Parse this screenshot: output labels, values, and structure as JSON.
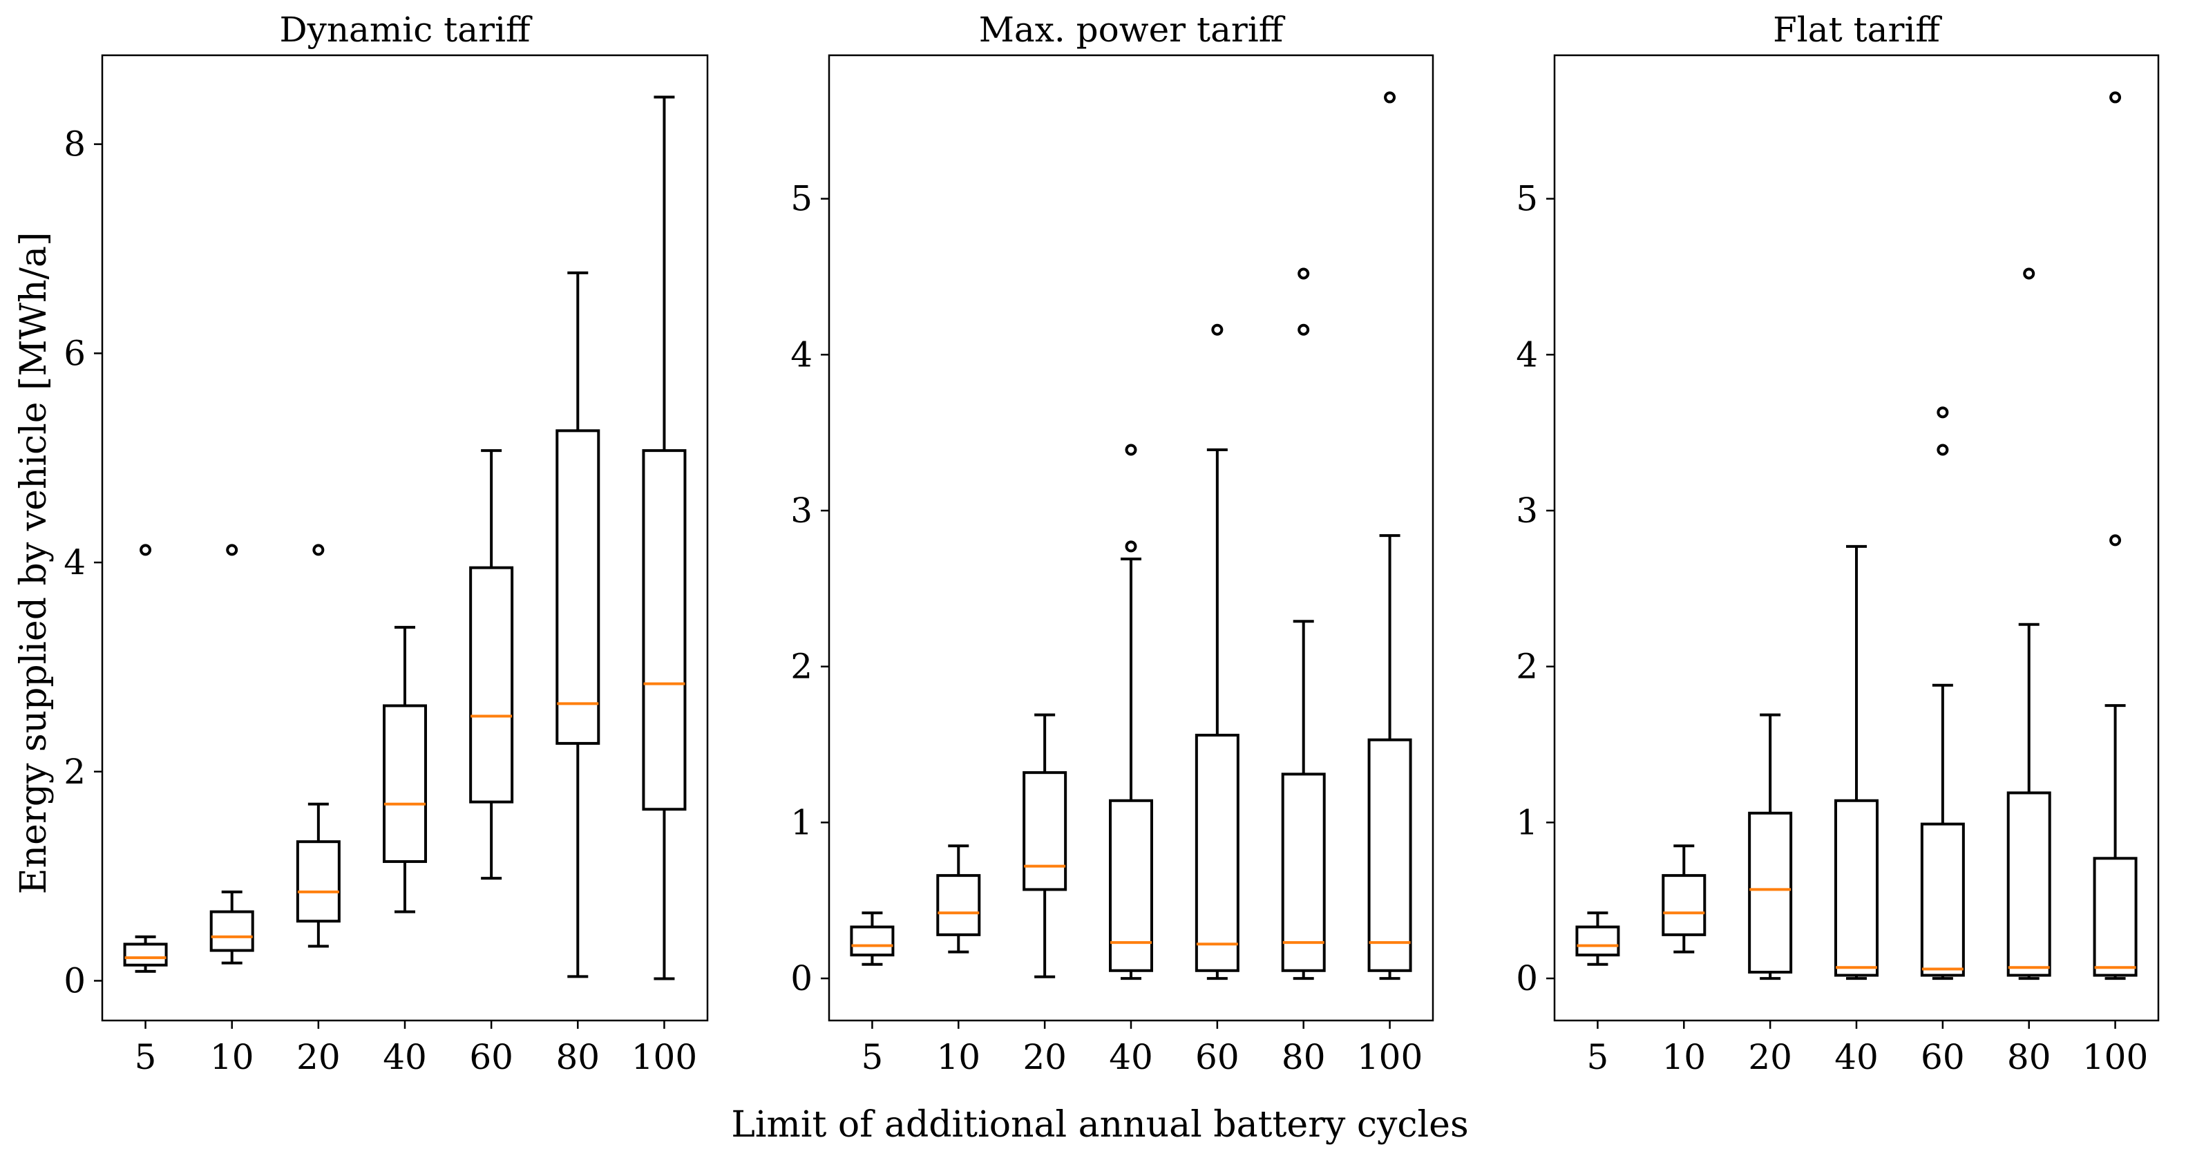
{
  "figure": {
    "ylabel": "Energy supplied by vehicle [MWh/a]",
    "xlabel": "Limit of additional annual battery cycles"
  },
  "colors": {
    "box": "#000000",
    "median": "#ff7f0e",
    "background": "#ffffff"
  },
  "chart_data": [
    {
      "type": "boxplot",
      "title": "Dynamic tariff",
      "categories": [
        "5",
        "10",
        "20",
        "40",
        "60",
        "80",
        "100"
      ],
      "ylim": [
        -0.38,
        8.85
      ],
      "yticks": [
        0,
        2,
        4,
        6,
        8
      ],
      "boxes": [
        {
          "whislo": 0.09,
          "q1": 0.15,
          "med": 0.22,
          "q3": 0.35,
          "whishi": 0.42,
          "fliers": [
            4.12
          ]
        },
        {
          "whislo": 0.17,
          "q1": 0.29,
          "med": 0.42,
          "q3": 0.66,
          "whishi": 0.85,
          "fliers": [
            4.12
          ]
        },
        {
          "whislo": 0.33,
          "q1": 0.57,
          "med": 0.85,
          "q3": 1.33,
          "whishi": 1.69,
          "fliers": [
            4.12
          ]
        },
        {
          "whislo": 0.66,
          "q1": 1.14,
          "med": 1.69,
          "q3": 2.63,
          "whishi": 3.38,
          "fliers": []
        },
        {
          "whislo": 0.98,
          "q1": 1.71,
          "med": 2.53,
          "q3": 3.95,
          "whishi": 5.07,
          "fliers": []
        },
        {
          "whislo": 0.04,
          "q1": 2.27,
          "med": 2.65,
          "q3": 5.26,
          "whishi": 6.77,
          "fliers": []
        },
        {
          "whislo": 0.02,
          "q1": 1.64,
          "med": 2.84,
          "q3": 5.07,
          "whishi": 8.45,
          "fliers": []
        }
      ]
    },
    {
      "type": "boxplot",
      "title": "Max. power tariff",
      "categories": [
        "5",
        "10",
        "20",
        "40",
        "60",
        "80",
        "100"
      ],
      "ylim": [
        -0.27,
        5.92
      ],
      "yticks": [
        0,
        1,
        2,
        3,
        4,
        5
      ],
      "boxes": [
        {
          "whislo": 0.09,
          "q1": 0.15,
          "med": 0.21,
          "q3": 0.33,
          "whishi": 0.42,
          "fliers": []
        },
        {
          "whislo": 0.17,
          "q1": 0.28,
          "med": 0.42,
          "q3": 0.66,
          "whishi": 0.85,
          "fliers": []
        },
        {
          "whislo": 0.01,
          "q1": 0.57,
          "med": 0.72,
          "q3": 1.32,
          "whishi": 1.69,
          "fliers": []
        },
        {
          "whislo": 0.0,
          "q1": 0.05,
          "med": 0.23,
          "q3": 1.14,
          "whishi": 2.69,
          "fliers": [
            2.77,
            3.39
          ]
        },
        {
          "whislo": 0.0,
          "q1": 0.05,
          "med": 0.22,
          "q3": 1.56,
          "whishi": 3.39,
          "fliers": [
            4.16
          ]
        },
        {
          "whislo": 0.0,
          "q1": 0.05,
          "med": 0.23,
          "q3": 1.31,
          "whishi": 2.29,
          "fliers": [
            4.16,
            4.52
          ]
        },
        {
          "whislo": 0.0,
          "q1": 0.05,
          "med": 0.23,
          "q3": 1.53,
          "whishi": 2.84,
          "fliers": [
            5.65
          ]
        }
      ]
    },
    {
      "type": "boxplot",
      "title": "Flat tariff",
      "categories": [
        "5",
        "10",
        "20",
        "40",
        "60",
        "80",
        "100"
      ],
      "ylim": [
        -0.27,
        5.92
      ],
      "yticks": [
        0,
        1,
        2,
        3,
        4,
        5
      ],
      "boxes": [
        {
          "whislo": 0.09,
          "q1": 0.15,
          "med": 0.21,
          "q3": 0.33,
          "whishi": 0.42,
          "fliers": []
        },
        {
          "whislo": 0.17,
          "q1": 0.28,
          "med": 0.42,
          "q3": 0.66,
          "whishi": 0.85,
          "fliers": []
        },
        {
          "whislo": 0.0,
          "q1": 0.04,
          "med": 0.57,
          "q3": 1.06,
          "whishi": 1.69,
          "fliers": []
        },
        {
          "whislo": 0.0,
          "q1": 0.02,
          "med": 0.07,
          "q3": 1.14,
          "whishi": 2.77,
          "fliers": []
        },
        {
          "whislo": 0.0,
          "q1": 0.02,
          "med": 0.06,
          "q3": 0.99,
          "whishi": 1.88,
          "fliers": [
            3.39,
            3.63
          ]
        },
        {
          "whislo": 0.0,
          "q1": 0.02,
          "med": 0.07,
          "q3": 1.19,
          "whishi": 2.27,
          "fliers": [
            4.52
          ]
        },
        {
          "whislo": 0.0,
          "q1": 0.02,
          "med": 0.07,
          "q3": 0.77,
          "whishi": 1.75,
          "fliers": [
            2.81,
            5.65
          ]
        }
      ]
    }
  ]
}
